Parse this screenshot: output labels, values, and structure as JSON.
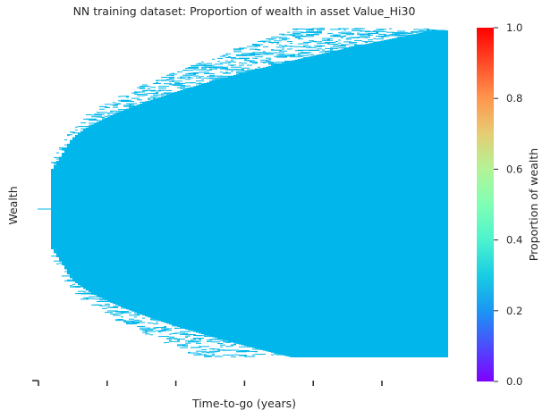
{
  "chart_data": {
    "type": "heatmap",
    "title": "NN training dataset: Proportion of wealth in asset Value_Hi30",
    "xlabel": "Time-to-go (years)",
    "ylabel": "Wealth",
    "colorbar": {
      "label": "Proportion of wealth",
      "ticks": [
        "0.0",
        "0.2",
        "0.4",
        "0.6",
        "0.8",
        "1.0"
      ],
      "range": [
        0.0,
        1.0
      ],
      "colormap": "rainbow"
    },
    "x_tick_count": 6,
    "x_tick_labels_visible": false,
    "y_tick_labels_visible": false,
    "cell_value": 0.25,
    "cell_color": "#00b6ea",
    "empty_color": "#ffffff",
    "description_shape": "fan that widens from left (start) to right (end) of the time axis",
    "grid": false
  }
}
